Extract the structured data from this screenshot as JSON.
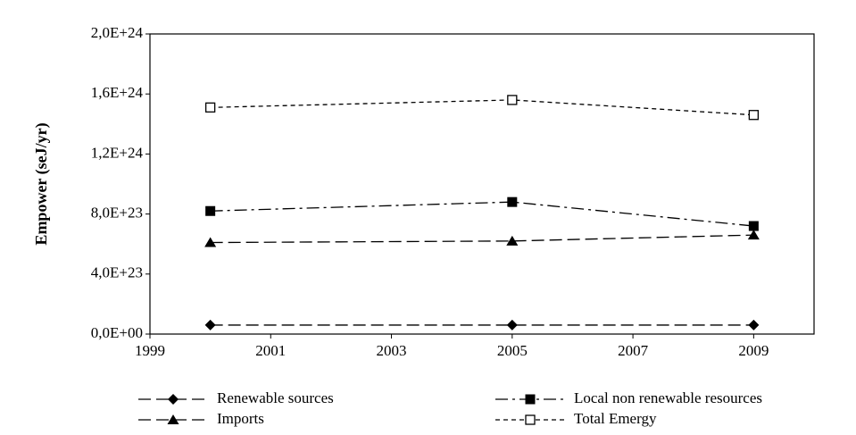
{
  "chart_data": {
    "type": "line",
    "y_label": "Empower (seJ/yr)",
    "x": [
      2000,
      2005,
      2009
    ],
    "xlim": [
      1999,
      2010
    ],
    "xticks": [
      1999,
      2001,
      2003,
      2005,
      2007,
      2009
    ],
    "ylim": [
      0,
      2e+24
    ],
    "yticks": [
      {
        "value": 0,
        "label": "0,0E+00"
      },
      {
        "value": 4e+23,
        "label": "4,0E+23"
      },
      {
        "value": 8e+23,
        "label": "8,0E+23"
      },
      {
        "value": 1.2e+24,
        "label": "1,2E+24"
      },
      {
        "value": 1.6e+24,
        "label": "1,6E+24"
      },
      {
        "value": 2e+24,
        "label": "2,0E+24"
      }
    ],
    "grid": false,
    "legend": "bottom",
    "series": [
      {
        "name": "Renewable sources",
        "color": "#000000",
        "marker": "diamond",
        "dash": "long",
        "values": [
          6e+22,
          6e+22,
          6e+22
        ]
      },
      {
        "name": "Local non renewable resources",
        "color": "#000000",
        "marker": "square",
        "dash": "dash-dot",
        "values": [
          8.2e+23,
          8.8e+23,
          7.2e+23
        ]
      },
      {
        "name": "Imports",
        "color": "#000000",
        "marker": "triangle",
        "dash": "long",
        "values": [
          6.1e+23,
          6.2e+23,
          6.6e+23
        ]
      },
      {
        "name": "Total Emergy",
        "color": "#000000",
        "marker": "open-square",
        "dash": "short",
        "values": [
          1.51e+24,
          1.56e+24,
          1.46e+24
        ]
      }
    ]
  }
}
